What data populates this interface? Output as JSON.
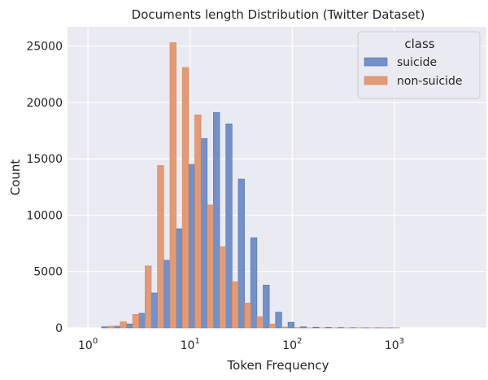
{
  "chart_data": {
    "type": "bar",
    "title": "Documents length Distribution (Twitter Dataset)",
    "xlabel": "Token Frequency",
    "ylabel": "Count",
    "x_scale": "log",
    "x_ticks": [
      {
        "value": 1,
        "base": "10",
        "exp": "0"
      },
      {
        "value": 10,
        "base": "10",
        "exp": "1"
      },
      {
        "value": 100,
        "base": "10",
        "exp": "2"
      },
      {
        "value": 1000,
        "base": "10",
        "exp": "3"
      }
    ],
    "y_ticks": [
      0,
      5000,
      10000,
      15000,
      20000,
      25000
    ],
    "ylim": [
      0,
      26700
    ],
    "xlim_log10": [
      -0.2,
      3.9
    ],
    "grid": true,
    "legend": {
      "title": "class",
      "position": "top-right"
    },
    "bins": [
      {
        "x0": 1.36,
        "x1": 1.8
      },
      {
        "x0": 1.8,
        "x1": 2.38
      },
      {
        "x0": 2.38,
        "x1": 3.15
      },
      {
        "x0": 3.15,
        "x1": 4.17
      },
      {
        "x0": 4.17,
        "x1": 5.52
      },
      {
        "x0": 5.52,
        "x1": 7.3
      },
      {
        "x0": 7.3,
        "x1": 9.66
      },
      {
        "x0": 9.66,
        "x1": 12.78
      },
      {
        "x0": 12.78,
        "x1": 16.91
      },
      {
        "x0": 16.91,
        "x1": 22.38
      },
      {
        "x0": 22.38,
        "x1": 29.61
      },
      {
        "x0": 29.61,
        "x1": 39.18
      },
      {
        "x0": 39.18,
        "x1": 51.84
      },
      {
        "x0": 51.84,
        "x1": 68.59
      },
      {
        "x0": 68.59,
        "x1": 90.75
      },
      {
        "x0": 90.75,
        "x1": 120.07
      },
      {
        "x0": 120.07,
        "x1": 158.86
      },
      {
        "x0": 158.86,
        "x1": 210.19
      },
      {
        "x0": 210.19,
        "x1": 278.1
      },
      {
        "x0": 278.1,
        "x1": 367.94
      },
      {
        "x0": 367.94,
        "x1": 486.82
      },
      {
        "x0": 486.82,
        "x1": 644.11
      },
      {
        "x0": 644.11,
        "x1": 852.21
      },
      {
        "x0": 852.21,
        "x1": 1127.55
      }
    ],
    "series": [
      {
        "name": "suicide",
        "color": "#7391c6",
        "edge_color": "#4c72b0",
        "values": [
          100,
          150,
          350,
          1300,
          3100,
          6000,
          8800,
          14500,
          16800,
          19100,
          18100,
          13200,
          8000,
          3800,
          1400,
          500,
          100,
          60,
          40,
          30,
          20,
          10,
          10,
          10
        ]
      },
      {
        "name": "non-suicide",
        "color": "#e29b78",
        "edge_color": "#dd8452",
        "values": [
          150,
          550,
          1200,
          5500,
          14400,
          25300,
          23100,
          18900,
          10900,
          7200,
          4100,
          2200,
          1000,
          350,
          80,
          30,
          10,
          10,
          10,
          10,
          10,
          10,
          10,
          10
        ]
      }
    ]
  }
}
